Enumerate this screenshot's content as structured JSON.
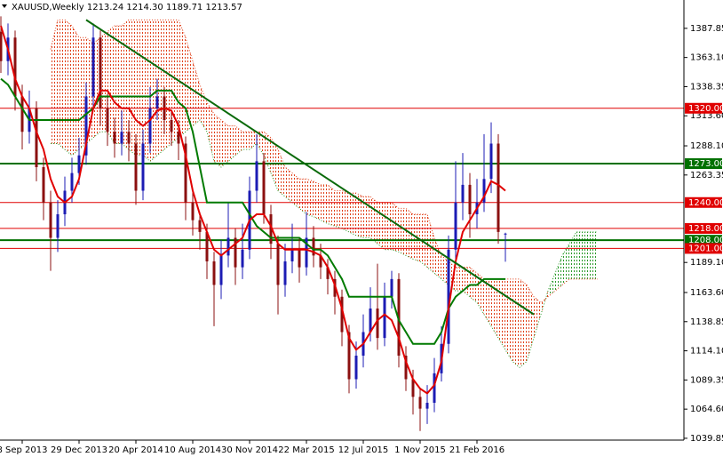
{
  "chart_data": {
    "type": "ohlc",
    "title": "XAUUSD,Weekly",
    "last_labels": [
      "1213.24",
      "1214.30",
      "1189.71",
      "1213.57"
    ],
    "categories": [
      null,
      null,
      null,
      "8 Sep 2013",
      null,
      null,
      null,
      null,
      null,
      null,
      null,
      "29 Dec 2013",
      null,
      null,
      null,
      null,
      null,
      null,
      null,
      "20 Apr 2014",
      null,
      null,
      null,
      null,
      null,
      null,
      null,
      "10 Aug 2014",
      null,
      null,
      null,
      null,
      null,
      null,
      null,
      "30 Nov 2014",
      null,
      null,
      null,
      null,
      null,
      null,
      null,
      "22 Mar 2015",
      null,
      null,
      null,
      null,
      null,
      null,
      null,
      "12 Jul 2015",
      null,
      null,
      null,
      null,
      null,
      null,
      null,
      "1 Nov 2015",
      null,
      null,
      null,
      null,
      null,
      null,
      null,
      "21 Feb 2016",
      null,
      null,
      null,
      null
    ],
    "ohlc": [
      [
        1385,
        1398,
        1350,
        1360
      ],
      [
        1360,
        1392,
        1348,
        1380
      ],
      [
        1380,
        1386,
        1318,
        1330
      ],
      [
        1330,
        1340,
        1285,
        1300
      ],
      [
        1300,
        1335,
        1290,
        1320
      ],
      [
        1320,
        1326,
        1258,
        1270
      ],
      [
        1270,
        1278,
        1225,
        1240
      ],
      [
        1240,
        1250,
        1182,
        1210
      ],
      [
        1210,
        1242,
        1198,
        1230
      ],
      [
        1230,
        1262,
        1220,
        1250
      ],
      [
        1250,
        1278,
        1240,
        1265
      ],
      [
        1265,
        1295,
        1255,
        1280
      ],
      [
        1280,
        1342,
        1272,
        1330
      ],
      [
        1330,
        1392,
        1320,
        1380
      ],
      [
        1380,
        1386,
        1305,
        1320
      ],
      [
        1320,
        1332,
        1288,
        1300
      ],
      [
        1300,
        1312,
        1278,
        1290
      ],
      [
        1290,
        1318,
        1280,
        1300
      ],
      [
        1300,
        1310,
        1275,
        1290
      ],
      [
        1290,
        1298,
        1238,
        1250
      ],
      [
        1250,
        1302,
        1242,
        1290
      ],
      [
        1290,
        1338,
        1282,
        1320
      ],
      [
        1320,
        1345,
        1310,
        1330
      ],
      [
        1330,
        1338,
        1298,
        1310
      ],
      [
        1310,
        1318,
        1288,
        1300
      ],
      [
        1300,
        1310,
        1276,
        1290
      ],
      [
        1290,
        1296,
        1225,
        1240
      ],
      [
        1240,
        1252,
        1212,
        1225
      ],
      [
        1225,
        1232,
        1200,
        1215
      ],
      [
        1215,
        1222,
        1175,
        1190
      ],
      [
        1190,
        1198,
        1135,
        1170
      ],
      [
        1170,
        1208,
        1158,
        1195
      ],
      [
        1195,
        1240,
        1185,
        1210
      ],
      [
        1210,
        1218,
        1170,
        1185
      ],
      [
        1185,
        1222,
        1175,
        1200
      ],
      [
        1200,
        1262,
        1192,
        1250
      ],
      [
        1250,
        1298,
        1240,
        1275
      ],
      [
        1275,
        1282,
        1222,
        1230
      ],
      [
        1230,
        1238,
        1192,
        1205
      ],
      [
        1205,
        1212,
        1145,
        1170
      ],
      [
        1170,
        1205,
        1160,
        1190
      ],
      [
        1190,
        1222,
        1180,
        1200
      ],
      [
        1200,
        1210,
        1172,
        1185
      ],
      [
        1185,
        1232,
        1178,
        1210
      ],
      [
        1210,
        1220,
        1185,
        1195
      ],
      [
        1195,
        1205,
        1175,
        1185
      ],
      [
        1185,
        1192,
        1162,
        1175
      ],
      [
        1175,
        1182,
        1145,
        1160
      ],
      [
        1160,
        1166,
        1118,
        1130
      ],
      [
        1130,
        1136,
        1078,
        1090
      ],
      [
        1090,
        1122,
        1082,
        1110
      ],
      [
        1110,
        1145,
        1100,
        1130
      ],
      [
        1130,
        1168,
        1122,
        1150
      ],
      [
        1150,
        1188,
        1115,
        1125
      ],
      [
        1125,
        1172,
        1118,
        1160
      ],
      [
        1160,
        1182,
        1150,
        1175
      ],
      [
        1175,
        1180,
        1100,
        1110
      ],
      [
        1110,
        1118,
        1080,
        1090
      ],
      [
        1090,
        1098,
        1060,
        1075
      ],
      [
        1075,
        1082,
        1046,
        1065
      ],
      [
        1065,
        1085,
        1052,
        1070
      ],
      [
        1070,
        1108,
        1062,
        1095
      ],
      [
        1095,
        1135,
        1088,
        1120
      ],
      [
        1120,
        1212,
        1112,
        1200
      ],
      [
        1200,
        1275,
        1190,
        1240
      ],
      [
        1240,
        1282,
        1225,
        1255
      ],
      [
        1255,
        1265,
        1210,
        1230
      ],
      [
        1230,
        1260,
        1218,
        1240
      ],
      [
        1240,
        1298,
        1232,
        1260
      ],
      [
        1260,
        1308,
        1248,
        1290
      ],
      [
        1290,
        1298,
        1205,
        1215
      ],
      [
        1213.24,
        1214.3,
        1189.71,
        1213.57
      ]
    ],
    "up_color": "#1c1cb4",
    "down_color": "#8b1010",
    "tenkan": [
      1390,
      1370,
      1345,
      1330,
      1320,
      1300,
      1285,
      1260,
      1245,
      1240,
      1245,
      1260,
      1290,
      1320,
      1335,
      1335,
      1325,
      1320,
      1320,
      1310,
      1305,
      1310,
      1318,
      1320,
      1318,
      1305,
      1280,
      1250,
      1230,
      1215,
      1200,
      1195,
      1200,
      1205,
      1210,
      1225,
      1230,
      1230,
      1220,
      1205,
      1200,
      1200,
      1200,
      1200,
      1198,
      1195,
      1185,
      1170,
      1150,
      1125,
      1115,
      1120,
      1130,
      1140,
      1145,
      1140,
      1125,
      1105,
      1090,
      1082,
      1078,
      1085,
      1105,
      1150,
      1190,
      1215,
      1225,
      1235,
      1245,
      1258,
      1255,
      1250
    ],
    "tenkan_color": "#e00000",
    "kijun": [
      1345,
      1340,
      1330,
      1320,
      1310,
      1310,
      1310,
      1310,
      1310,
      1310,
      1310,
      1310,
      1315,
      1320,
      1330,
      1330,
      1330,
      1330,
      1330,
      1330,
      1330,
      1330,
      1335,
      1335,
      1335,
      1325,
      1320,
      1300,
      1270,
      1240,
      1240,
      1240,
      1240,
      1240,
      1240,
      1230,
      1220,
      1215,
      1210,
      1210,
      1210,
      1210,
      1210,
      1205,
      1200,
      1200,
      1195,
      1185,
      1175,
      1160,
      1160,
      1160,
      1160,
      1160,
      1160,
      1160,
      1140,
      1130,
      1120,
      1120,
      1120,
      1120,
      1130,
      1150,
      1160,
      1165,
      1170,
      1170,
      1175,
      1175,
      1175,
      1175
    ],
    "kijun_color": "#007a00",
    "span_a": [
      null,
      null,
      null,
      null,
      null,
      null,
      null,
      1290,
      1290,
      1285,
      1280,
      1285,
      1290,
      1295,
      1300,
      1300,
      1290,
      1290,
      1285,
      1280,
      1280,
      1275,
      1280,
      1285,
      1290,
      1295,
      1300,
      1305,
      1310,
      1300,
      1275,
      1270,
      1275,
      1280,
      1285,
      1285,
      1290,
      1280,
      1265,
      1250,
      1245,
      1240,
      1235,
      1230,
      1228,
      1225,
      1222,
      1220,
      1218,
      1215,
      1212,
      1210,
      1210,
      1205,
      1200,
      1200,
      1198,
      1195,
      1192,
      1190,
      1185,
      1180,
      1175,
      1170,
      1165,
      1165,
      1160,
      1155,
      1145,
      1135,
      1125,
      1115,
      1105,
      1100,
      1105,
      1125,
      1145,
      1165,
      1180,
      1195,
      1205,
      1215,
      1215,
      1215,
      1215
    ],
    "span_b": [
      null,
      null,
      null,
      null,
      null,
      null,
      null,
      1370,
      1395,
      1395,
      1390,
      1380,
      1380,
      1375,
      1380,
      1385,
      1390,
      1390,
      1395,
      1395,
      1395,
      1395,
      1395,
      1395,
      1395,
      1395,
      1380,
      1360,
      1340,
      1325,
      1315,
      1310,
      1305,
      1305,
      1300,
      1300,
      1300,
      1300,
      1295,
      1285,
      1270,
      1265,
      1260,
      1260,
      1258,
      1255,
      1255,
      1250,
      1250,
      1248,
      1248,
      1245,
      1245,
      1240,
      1240,
      1240,
      1235,
      1235,
      1230,
      1230,
      1230,
      1210,
      1195,
      1190,
      1185,
      1185,
      1185,
      1180,
      1175,
      1175,
      1175,
      1175,
      1175,
      1175,
      1170,
      1160,
      1155,
      1160,
      1165,
      1170,
      1175,
      1175,
      1175,
      1175,
      1175
    ],
    "span_a_color": "#2a9a2a",
    "span_b_color": "#e0401a",
    "trendline": {
      "x": [
        12,
        75
      ],
      "values": [
        1395,
        1145
      ],
      "color": "#0a6a0a"
    },
    "levels": [
      {
        "value": 1320,
        "label": "1320.00",
        "color": "#e00000"
      },
      {
        "value": 1273,
        "label": "1273.00",
        "color": "#007000"
      },
      {
        "value": 1240,
        "label": "1240.00",
        "color": "#e00000"
      },
      {
        "value": 1218,
        "label": "1218.00",
        "color": "#e00000"
      },
      {
        "value": 1208,
        "label": "1208.00",
        "color": "#007000"
      },
      {
        "value": 1201,
        "label": "1201.00",
        "color": "#e00000"
      }
    ],
    "xlim": [
      -0.125,
      96.125
    ],
    "ylim": [
      1038.3,
      1411.9
    ],
    "yticks": [
      1387.85,
      {
        "value": 1363.1,
        "label": "1363.10"
      },
      1338.35,
      {
        "value": 1313.6,
        "label": "1313.60"
      },
      {
        "value": 1288.1,
        "label": "1288.10"
      },
      1263.35,
      {
        "value": 1189.1,
        "label": "1189.10"
      },
      {
        "value": 1163.6,
        "label": "1163.60"
      },
      1138.85,
      {
        "value": 1114.1,
        "label": "1114.10"
      },
      1089.35,
      {
        "value": 1064.6,
        "label": "1064.60"
      },
      1039.85
    ]
  }
}
